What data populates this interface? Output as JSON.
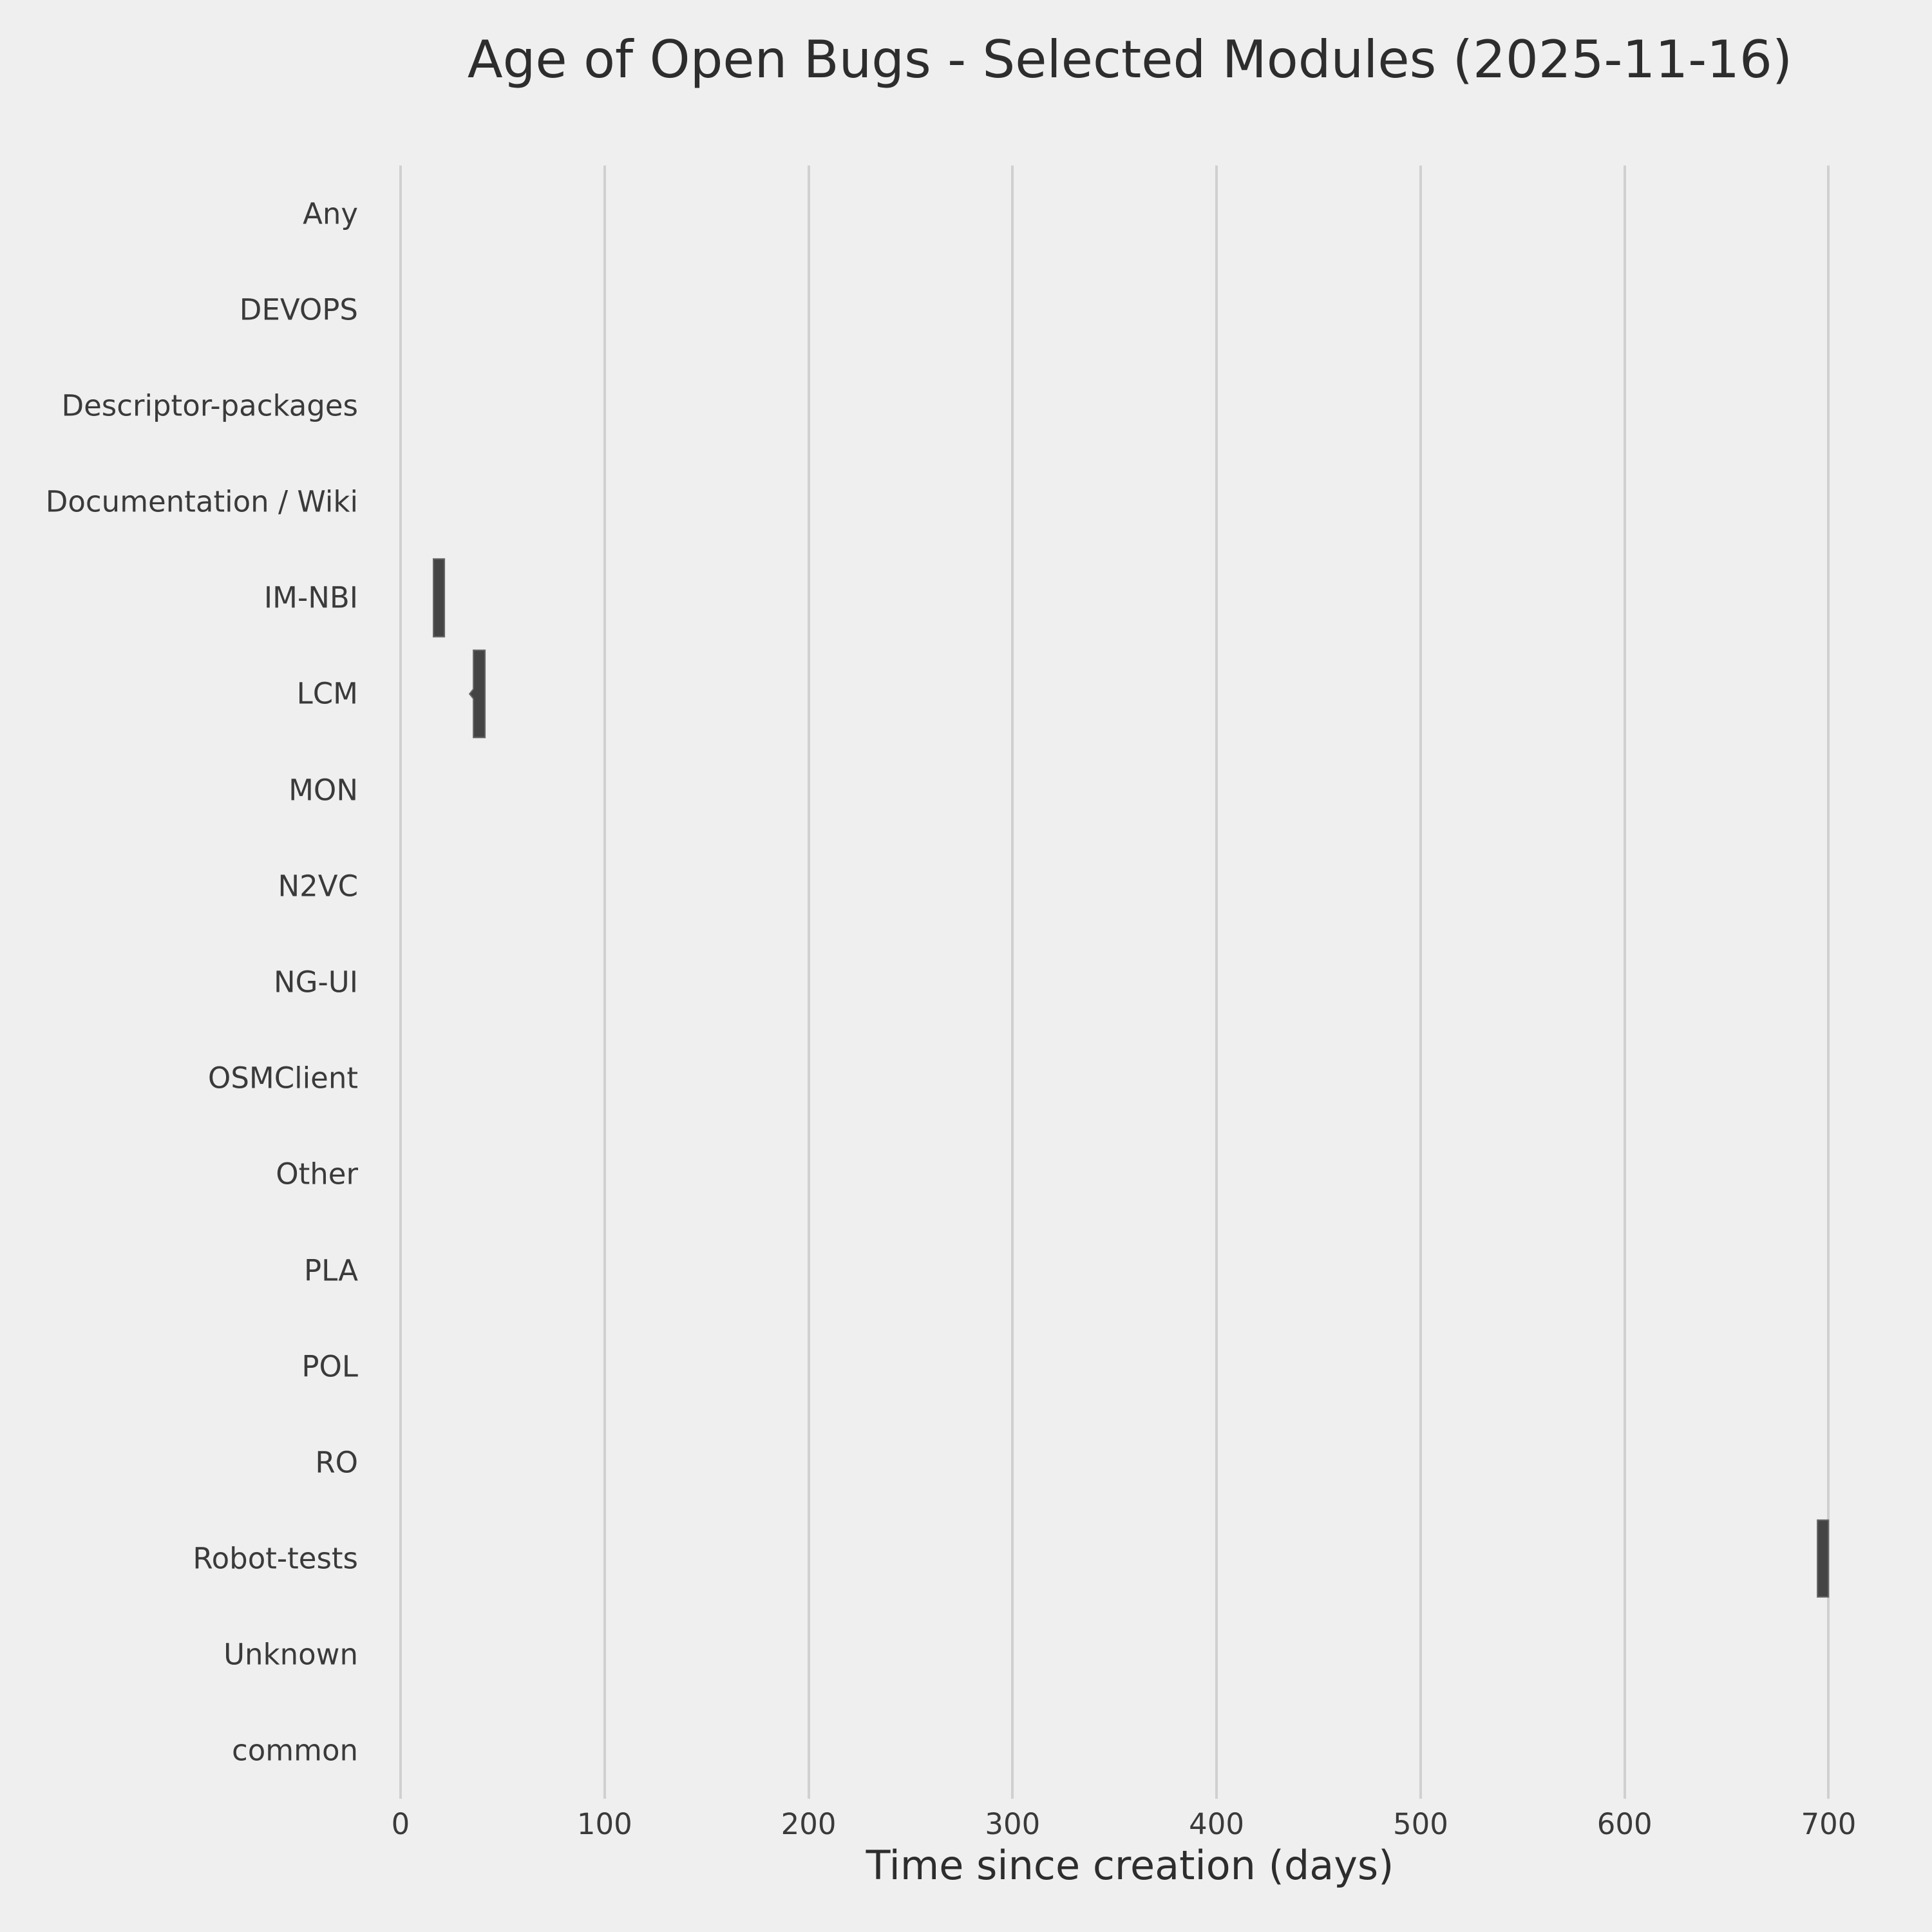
{
  "chart": {
    "title": "Age of Open Bugs - Selected Modules (2025-11-16)",
    "xlabel": "Time since creation (days)"
  },
  "chart_data": {
    "type": "violin",
    "orientation": "horizontal",
    "title": "Age of Open Bugs - Selected Modules (2025-11-16)",
    "xlabel": "Time since creation (days)",
    "ylabel": "",
    "categories": [
      "Any",
      "DEVOPS",
      "Descriptor-packages",
      "Documentation / Wiki",
      "IM-NBI",
      "LCM",
      "MON",
      "N2VC",
      "NG-UI",
      "OSMClient",
      "Other",
      "PLA",
      "POL",
      "RO",
      "Robot-tests",
      "Unknown",
      "common"
    ],
    "x_ticks": [
      0,
      100,
      200,
      300,
      400,
      500,
      600,
      700
    ],
    "xlim": [
      0,
      715
    ],
    "grid": "vertical-only",
    "legend": "none",
    "violins": [
      {
        "module": "IM-NBI",
        "min_days": 16.1,
        "max_days": 21.5,
        "width_frac": 0.81
      },
      {
        "module": "LCM",
        "min_days": 35.7,
        "max_days": 41.4,
        "width_frac": 0.91,
        "tip": {
          "x_days": 33.8,
          "half_height_frac": 0.05
        }
      },
      {
        "module": "Robot-tests",
        "min_days": 694.5,
        "max_days": 699.9,
        "width_frac": 0.8
      }
    ]
  },
  "colors": {
    "background": "#efefef",
    "grid": "#d0d0d0",
    "violin_fill": "#444444",
    "violin_edge": "#666666",
    "text": "#3a3a3a",
    "title_text": "#2d2d2d"
  }
}
